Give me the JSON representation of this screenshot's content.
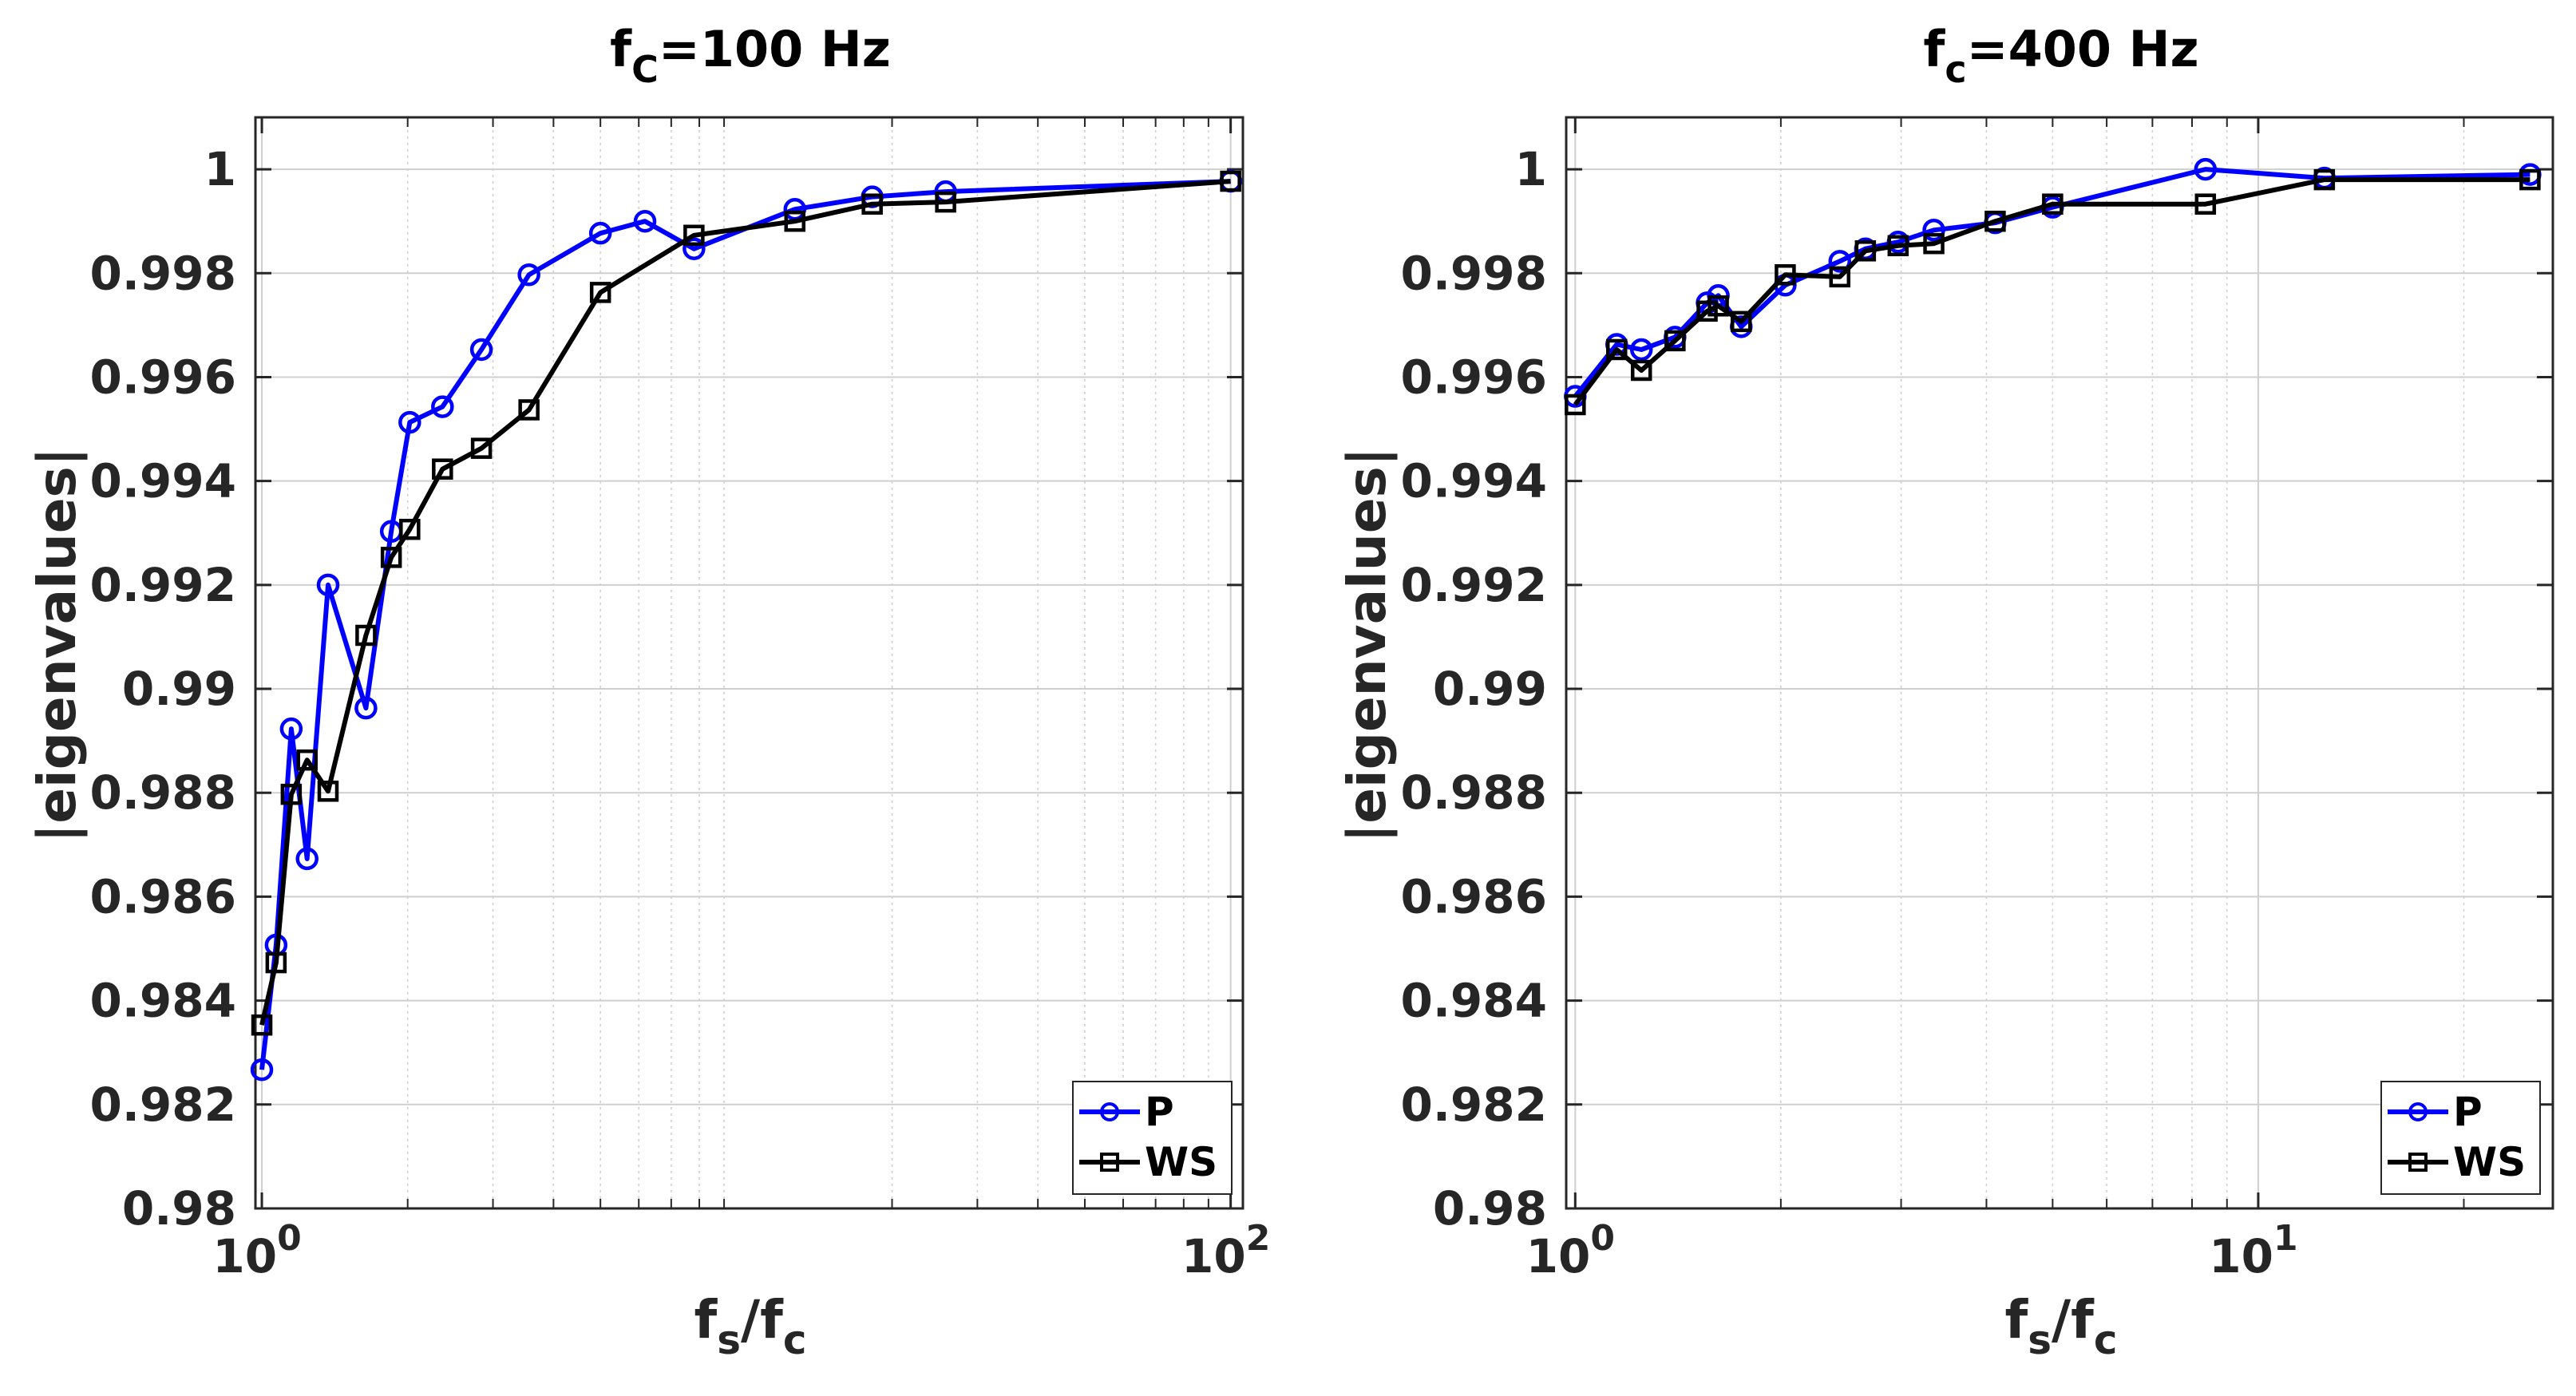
{
  "chart_data": [
    {
      "type": "line",
      "xscale": "log",
      "title": {
        "main": "f",
        "sub": "C",
        "rest": "=100 Hz"
      },
      "xlabel": {
        "a": "f",
        "a_sub": "s",
        "mid": "/f",
        "b_sub": "c"
      },
      "ylabel": "|eigenvalues|",
      "xlim": [
        0.97,
        106
      ],
      "ylim": [
        0.98,
        1.001
      ],
      "xticks": [
        {
          "value": 1,
          "base": "10",
          "exp": "0"
        },
        {
          "value": 100,
          "base": "10",
          "exp": "2"
        }
      ],
      "yticks": [
        {
          "value": 0.98,
          "label": "0.98"
        },
        {
          "value": 0.982,
          "label": "0.982"
        },
        {
          "value": 0.984,
          "label": "0.984"
        },
        {
          "value": 0.986,
          "label": "0.986"
        },
        {
          "value": 0.988,
          "label": "0.988"
        },
        {
          "value": 0.99,
          "label": "0.99"
        },
        {
          "value": 0.992,
          "label": "0.992"
        },
        {
          "value": 0.994,
          "label": "0.994"
        },
        {
          "value": 0.996,
          "label": "0.996"
        },
        {
          "value": 0.998,
          "label": "0.998"
        },
        {
          "value": 1,
          "label": "1"
        }
      ],
      "grid": true,
      "legend_position": "bottom-right",
      "series": [
        {
          "name": "P",
          "color": "#0000ff",
          "marker": "circle",
          "x": [
            1.0,
            1.07,
            1.15,
            1.24,
            1.37,
            1.64,
            1.85,
            2.02,
            2.36,
            2.84,
            3.56,
            5.0,
            6.18,
            7.8,
            12.6,
            18.2,
            25.8,
            100
          ],
          "y": [
            0.98267,
            0.98507,
            0.98923,
            0.98673,
            0.992,
            0.98963,
            0.99303,
            0.99513,
            0.99543,
            0.99653,
            0.99797,
            0.99877,
            0.999,
            0.99847,
            0.99923,
            0.99947,
            0.99957,
            0.99977
          ]
        },
        {
          "name": "WS",
          "color": "#000000",
          "marker": "square",
          "x": [
            1.0,
            1.07,
            1.15,
            1.24,
            1.37,
            1.64,
            1.85,
            2.02,
            2.36,
            2.84,
            3.56,
            5.0,
            7.8,
            12.6,
            18.2,
            25.8,
            100
          ],
          "y": [
            0.98353,
            0.98473,
            0.98797,
            0.98863,
            0.98803,
            0.99103,
            0.99253,
            0.99307,
            0.99423,
            0.99463,
            0.99537,
            0.99763,
            0.99873,
            0.999,
            0.99933,
            0.99937,
            0.99977
          ]
        }
      ]
    },
    {
      "type": "line",
      "xscale": "log",
      "title": {
        "main": "f",
        "sub": "c",
        "rest": "=400 Hz"
      },
      "xlabel": {
        "a": "f",
        "a_sub": "s",
        "mid": "/f",
        "b_sub": "c"
      },
      "ylabel": "|eigenvalues|",
      "xlim": [
        0.97,
        27
      ],
      "ylim": [
        0.98,
        1.001
      ],
      "xticks": [
        {
          "value": 1,
          "base": "10",
          "exp": "0"
        },
        {
          "value": 10,
          "base": "10",
          "exp": "1"
        }
      ],
      "yticks": [
        {
          "value": 0.98,
          "label": "0.98"
        },
        {
          "value": 0.982,
          "label": "0.982"
        },
        {
          "value": 0.984,
          "label": "0.984"
        },
        {
          "value": 0.986,
          "label": "0.986"
        },
        {
          "value": 0.988,
          "label": "0.988"
        },
        {
          "value": 0.99,
          "label": "0.99"
        },
        {
          "value": 0.992,
          "label": "0.992"
        },
        {
          "value": 0.994,
          "label": "0.994"
        },
        {
          "value": 0.996,
          "label": "0.996"
        },
        {
          "value": 0.998,
          "label": "0.998"
        },
        {
          "value": 1,
          "label": "1"
        }
      ],
      "grid": true,
      "legend_position": "bottom-right",
      "series": [
        {
          "name": "P",
          "color": "#0000ff",
          "marker": "circle",
          "x": [
            1.0,
            1.15,
            1.25,
            1.4,
            1.56,
            1.62,
            1.75,
            2.03,
            2.44,
            2.66,
            2.97,
            3.35,
            4.12,
            5.0,
            8.37,
            12.5,
            25
          ],
          "y": [
            0.99563,
            0.99663,
            0.99653,
            0.99677,
            0.99743,
            0.99757,
            0.99697,
            0.99777,
            0.99823,
            0.99847,
            0.9986,
            0.99883,
            0.99897,
            0.99927,
            1.0,
            0.99983,
            0.9999
          ]
        },
        {
          "name": "WS",
          "color": "#000000",
          "marker": "square",
          "x": [
            1.0,
            1.15,
            1.25,
            1.4,
            1.56,
            1.62,
            1.75,
            2.03,
            2.44,
            2.66,
            2.97,
            3.35,
            4.12,
            5.0,
            8.37,
            12.5,
            25
          ],
          "y": [
            0.99547,
            0.99653,
            0.99613,
            0.9967,
            0.99727,
            0.99737,
            0.99707,
            0.99797,
            0.99793,
            0.99843,
            0.99853,
            0.99857,
            0.999,
            0.99933,
            0.99933,
            0.9998,
            0.9998
          ]
        }
      ]
    }
  ]
}
